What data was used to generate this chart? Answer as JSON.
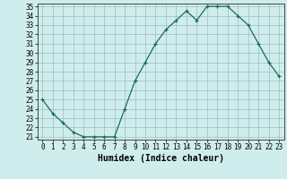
{
  "x": [
    0,
    1,
    2,
    3,
    4,
    5,
    6,
    7,
    8,
    9,
    10,
    11,
    12,
    13,
    14,
    15,
    16,
    17,
    18,
    19,
    20,
    21,
    22,
    23
  ],
  "y": [
    25,
    23.5,
    22.5,
    21.5,
    21,
    21,
    21,
    21,
    24,
    27,
    29,
    31,
    32.5,
    33.5,
    34.5,
    33.5,
    35,
    35,
    35,
    34,
    33,
    31,
    29,
    27.5
  ],
  "line_color": "#1a6b5a",
  "marker": "+",
  "bg_color": "#d0eded",
  "grid_color": "#9bbfbf",
  "xlabel": "Humidex (Indice chaleur)",
  "ylim_min": 21,
  "ylim_max": 35,
  "xlim_min": -0.5,
  "xlim_max": 23.5,
  "yticks": [
    21,
    22,
    23,
    24,
    25,
    26,
    27,
    28,
    29,
    30,
    31,
    32,
    33,
    34,
    35
  ],
  "xticks": [
    0,
    1,
    2,
    3,
    4,
    5,
    6,
    7,
    8,
    9,
    10,
    11,
    12,
    13,
    14,
    15,
    16,
    17,
    18,
    19,
    20,
    21,
    22,
    23
  ],
  "tick_fontsize": 5.5,
  "label_fontsize": 7.0
}
